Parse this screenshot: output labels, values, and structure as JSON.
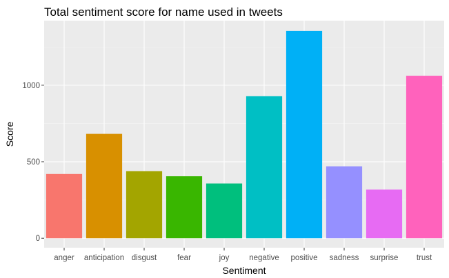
{
  "chart_data": {
    "type": "bar",
    "title": "Total sentiment score for name used in tweets",
    "xlabel": "Sentiment",
    "ylabel": "Score",
    "categories": [
      "anger",
      "anticipation",
      "disgust",
      "fear",
      "joy",
      "negative",
      "positive",
      "sadness",
      "surprise",
      "trust"
    ],
    "values": [
      420,
      682,
      438,
      405,
      358,
      928,
      1355,
      470,
      318,
      1062
    ],
    "colors": [
      "#F8766D",
      "#D89000",
      "#A3A500",
      "#39B600",
      "#00BF7D",
      "#00BFC4",
      "#00B0F6",
      "#9590FF",
      "#E76BF3",
      "#FF62BC"
    ],
    "yticks": [
      0,
      500,
      1000
    ],
    "ylim": [
      -62,
      1422
    ],
    "grid": true,
    "legend": "none",
    "panel_color": "#EBEBEB"
  }
}
